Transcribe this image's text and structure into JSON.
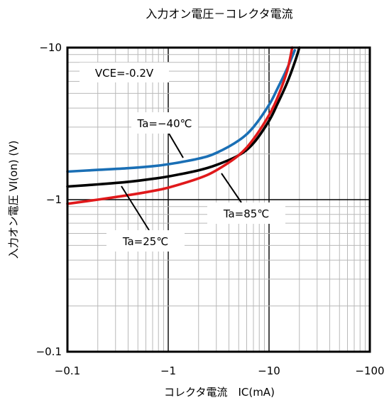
{
  "chart_data": {
    "type": "line",
    "title": "入力オン電圧－コレクタ電流",
    "xlabel": "コレクタ電流　IC(mA)",
    "ylabel": "入力オン電圧 VI(on) (V)",
    "xscale": "log",
    "yscale": "log",
    "xlim": [
      -0.1,
      -100
    ],
    "ylim": [
      -0.1,
      -10
    ],
    "xticks": [
      -0.1,
      -1,
      -10,
      -100
    ],
    "yticks": [
      -0.1,
      -1,
      -10
    ],
    "xtick_labels": [
      "−0.1",
      "−1",
      "−10",
      "−100"
    ],
    "ytick_labels": [
      "−0.1",
      "−1",
      "−10"
    ],
    "grid": true,
    "condition_label": "VCE=-0.2V",
    "series": [
      {
        "name": "Ta=−40℃",
        "color": "#1a6fb5",
        "x": [
          -0.1,
          -0.2,
          -0.4,
          -0.7,
          -1,
          -2,
          -3,
          -5,
          -7,
          -10,
          -12,
          -15,
          -18
        ],
        "y": [
          -1.53,
          -1.57,
          -1.61,
          -1.66,
          -1.71,
          -1.86,
          -2.03,
          -2.45,
          -3.0,
          -4.2,
          -5.3,
          -7.2,
          -9.6
        ]
      },
      {
        "name": "Ta=25℃",
        "color": "#000000",
        "x": [
          -0.1,
          -0.2,
          -0.4,
          -0.7,
          -1,
          -2,
          -3,
          -5,
          -7,
          -10,
          -12,
          -15,
          -18,
          -20
        ],
        "y": [
          -1.22,
          -1.26,
          -1.31,
          -1.37,
          -1.42,
          -1.56,
          -1.69,
          -1.96,
          -2.35,
          -3.3,
          -4.2,
          -5.8,
          -8.0,
          -10.0
        ]
      },
      {
        "name": "Ta=85℃",
        "color": "#e0191b",
        "x": [
          -0.1,
          -0.2,
          -0.4,
          -0.7,
          -1,
          -2,
          -3,
          -5,
          -7,
          -10,
          -12,
          -15,
          -17
        ],
        "y": [
          -0.94,
          -1.0,
          -1.07,
          -1.14,
          -1.2,
          -1.38,
          -1.56,
          -1.96,
          -2.5,
          -3.6,
          -4.6,
          -6.9,
          -10.0
        ]
      }
    ],
    "annotations": [
      {
        "label": "Ta=−40℃"
      },
      {
        "label": "Ta=25℃"
      },
      {
        "label": "Ta=85℃"
      }
    ]
  }
}
